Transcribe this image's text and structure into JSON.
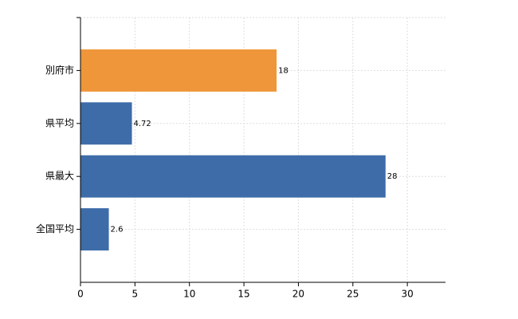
{
  "chart_data": {
    "type": "bar",
    "orientation": "horizontal",
    "categories": [
      "別府市",
      "県平均",
      "県最大",
      "全国平均"
    ],
    "values": [
      18,
      4.72,
      28,
      2.6
    ],
    "colors": [
      "#f0963a",
      "#3d6ca8",
      "#3d6ca8",
      "#3d6ca8"
    ],
    "xlim": [
      0,
      33.5
    ],
    "xticks": [
      0,
      5,
      10,
      15,
      20,
      25,
      30
    ],
    "grid": true
  }
}
